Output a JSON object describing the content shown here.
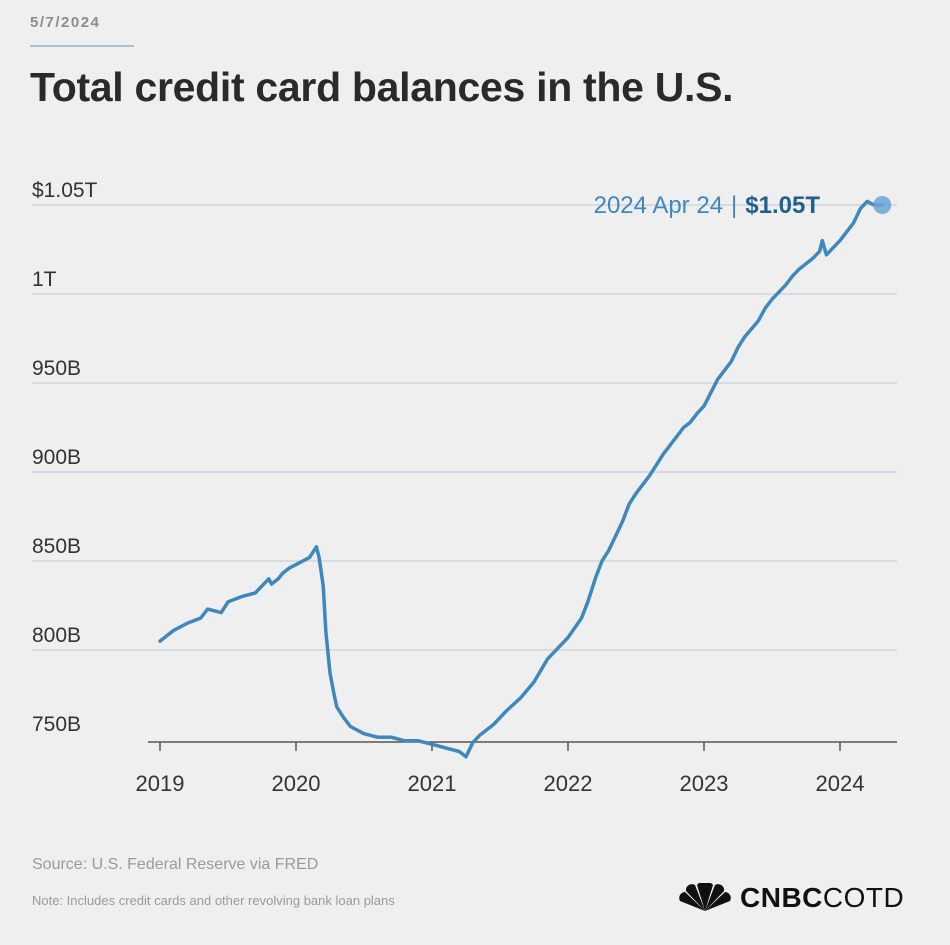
{
  "header": {
    "date": "5/7/2024",
    "title": "Total credit card balances in the U.S."
  },
  "chart_data": {
    "type": "line",
    "title": "Total credit card balances in the U.S.",
    "xlabel": "",
    "ylabel": "",
    "x_ticks": [
      "2019",
      "2020",
      "2021",
      "2022",
      "2023",
      "2024"
    ],
    "y_ticks": [
      "$1.05T",
      "1T",
      "950B",
      "900B",
      "850B",
      "800B",
      "750B"
    ],
    "y_tick_values": [
      1050,
      1000,
      950,
      900,
      850,
      800,
      750
    ],
    "xlim": [
      2018.98,
      2024.4
    ],
    "ylim": [
      735,
      1060
    ],
    "grid": true,
    "units": "billions USD",
    "annotation": {
      "date_text": "2024 Apr 24",
      "separator": "|",
      "value_text": "$1.05T",
      "x": 2024.31,
      "y": 1050
    },
    "series": [
      {
        "color": "#3e87bf",
        "x": [
          2019.0,
          2019.05,
          2019.1,
          2019.2,
          2019.3,
          2019.35,
          2019.45,
          2019.5,
          2019.6,
          2019.7,
          2019.8,
          2019.82,
          2019.87,
          2019.9,
          2019.95,
          2020.0,
          2020.05,
          2020.1,
          2020.15,
          2020.17,
          2020.2,
          2020.22,
          2020.25,
          2020.28,
          2020.3,
          2020.35,
          2020.4,
          2020.5,
          2020.6,
          2020.7,
          2020.8,
          2020.9,
          2021.0,
          2021.05,
          2021.1,
          2021.15,
          2021.2,
          2021.25,
          2021.3,
          2021.35,
          2021.45,
          2021.55,
          2021.65,
          2021.75,
          2021.85,
          2021.95,
          2022.0,
          2022.1,
          2022.15,
          2022.2,
          2022.25,
          2022.3,
          2022.4,
          2022.45,
          2022.5,
          2022.6,
          2022.65,
          2022.7,
          2022.8,
          2022.85,
          2022.9,
          2022.95,
          2023.0,
          2023.1,
          2023.2,
          2023.25,
          2023.3,
          2023.4,
          2023.45,
          2023.5,
          2023.6,
          2023.65,
          2023.7,
          2023.8,
          2023.85,
          2023.87,
          2023.9,
          2024.0,
          2024.1,
          2024.15,
          2024.2,
          2024.25,
          2024.31
        ],
        "y": [
          805,
          808,
          811,
          815,
          818,
          823,
          821,
          827,
          830,
          832,
          840,
          837,
          840,
          843,
          846,
          848,
          850,
          852,
          858,
          852,
          836,
          810,
          787,
          775,
          768,
          762,
          757,
          753,
          751,
          751,
          749,
          749,
          747,
          746,
          745,
          744,
          743,
          740,
          748,
          752,
          758,
          766,
          773,
          782,
          795,
          803,
          807,
          818,
          828,
          840,
          850,
          856,
          872,
          882,
          888,
          898,
          904,
          910,
          920,
          925,
          928,
          933,
          937,
          952,
          962,
          970,
          976,
          985,
          992,
          997,
          1005,
          1010,
          1014,
          1020,
          1024,
          1030,
          1022,
          1030,
          1040,
          1048,
          1052,
          1050,
          1050
        ]
      }
    ]
  },
  "footer": {
    "source": "Source: U.S. Federal Reserve via FRED",
    "note": "Note: Includes credit cards and other revolving bank loan plans",
    "logo_bold": "CNBC",
    "logo_light": "COTD"
  }
}
